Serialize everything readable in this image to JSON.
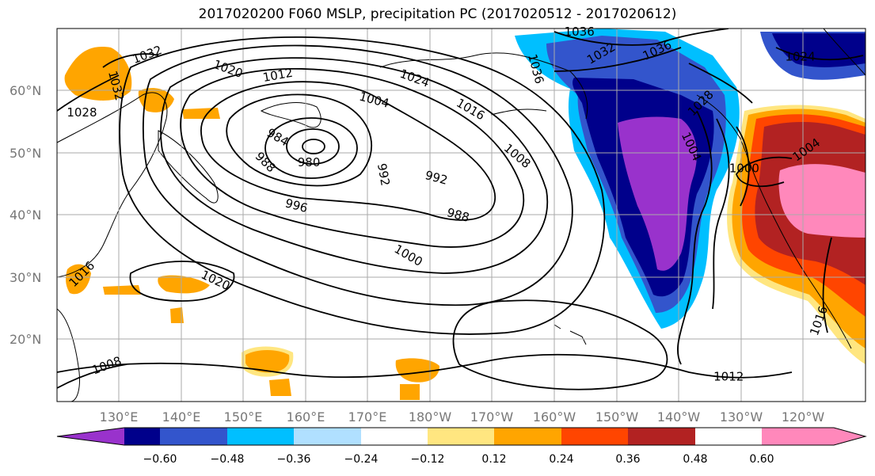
{
  "title": "2017020200 F060 MSLP, precipitation PC (2017020512 - 2017020612)",
  "map": {
    "projection": "PlateCarree",
    "extent": {
      "lon_min": 120,
      "lon_max": 250,
      "lat_min": 10,
      "lat_max": 70
    },
    "latitude_labels": [
      "60°N",
      "50°N",
      "40°N",
      "30°N",
      "20°N"
    ],
    "longitude_labels": [
      "130°E",
      "140°E",
      "150°E",
      "160°E",
      "170°E",
      "180°W",
      "170°W",
      "160°W",
      "150°W",
      "140°W",
      "130°W",
      "120°W"
    ],
    "gridlines": true,
    "isobar_labels": [
      {
        "text": "1032",
        "lon": 134.5,
        "lat": 65.8,
        "angle": -20
      },
      {
        "text": "1032",
        "lon": 129.5,
        "lat": 60.8,
        "angle": 75
      },
      {
        "text": "1028",
        "lon": 124.0,
        "lat": 56.5,
        "angle": 0
      },
      {
        "text": "1020",
        "lon": 147.5,
        "lat": 63.5,
        "angle": 20
      },
      {
        "text": "1012",
        "lon": 155.5,
        "lat": 62.5,
        "angle": -10
      },
      {
        "text": "1024",
        "lon": 177.5,
        "lat": 62.0,
        "angle": 20
      },
      {
        "text": "1004",
        "lon": 171.0,
        "lat": 58.5,
        "angle": 15
      },
      {
        "text": "1016",
        "lon": 186.5,
        "lat": 57.0,
        "angle": 30
      },
      {
        "text": "1008",
        "lon": 194.0,
        "lat": 49.5,
        "angle": 40
      },
      {
        "text": "984",
        "lon": 155.5,
        "lat": 52.5,
        "angle": 30
      },
      {
        "text": "988",
        "lon": 153.5,
        "lat": 48.5,
        "angle": 45
      },
      {
        "text": "980",
        "lon": 160.5,
        "lat": 48.5,
        "angle": 0
      },
      {
        "text": "992",
        "lon": 172.5,
        "lat": 46.5,
        "angle": 80
      },
      {
        "text": "992",
        "lon": 181.0,
        "lat": 46.0,
        "angle": 15
      },
      {
        "text": "996",
        "lon": 158.5,
        "lat": 41.5,
        "angle": 15
      },
      {
        "text": "988",
        "lon": 184.5,
        "lat": 40.0,
        "angle": 15
      },
      {
        "text": "1000",
        "lon": 176.5,
        "lat": 33.5,
        "angle": 30
      },
      {
        "text": "1020",
        "lon": 145.5,
        "lat": 29.5,
        "angle": 25
      },
      {
        "text": "1016",
        "lon": 124.0,
        "lat": 30.5,
        "angle": -45
      },
      {
        "text": "1008",
        "lon": 128.0,
        "lat": 15.8,
        "angle": -20
      },
      {
        "text": "1012",
        "lon": 228.0,
        "lat": 14.0,
        "angle": 0
      },
      {
        "text": "1016",
        "lon": 242.5,
        "lat": 23.0,
        "angle": -70
      },
      {
        "text": "1036",
        "lon": 204.0,
        "lat": 69.5,
        "angle": 0
      },
      {
        "text": "1032",
        "lon": 207.5,
        "lat": 66.0,
        "angle": -30
      },
      {
        "text": "1036",
        "lon": 216.5,
        "lat": 66.5,
        "angle": -25
      },
      {
        "text": "1036",
        "lon": 197.0,
        "lat": 63.5,
        "angle": 75
      },
      {
        "text": "1024",
        "lon": 239.5,
        "lat": 65.5,
        "angle": 0
      },
      {
        "text": "1028",
        "lon": 223.5,
        "lat": 58.0,
        "angle": -45
      },
      {
        "text": "1004",
        "lon": 222.0,
        "lat": 51.0,
        "angle": 65
      },
      {
        "text": "1000",
        "lon": 230.5,
        "lat": 47.5,
        "angle": 0
      },
      {
        "text": "1004",
        "lon": 240.5,
        "lat": 50.5,
        "angle": -35
      }
    ]
  },
  "colorbar": {
    "tick_labels": [
      "−0.60",
      "−0.48",
      "−0.36",
      "−0.24",
      "−0.12",
      "0.12",
      "0.24",
      "0.36",
      "0.48",
      "0.60"
    ],
    "colors": [
      "#9932cc",
      "#00008b",
      "#3355cc",
      "#00bfff",
      "#b0e0ff",
      "#ffffff",
      "#ffe680",
      "#ffa500",
      "#ff4500",
      "#b22222",
      "#ff88bb"
    ]
  }
}
